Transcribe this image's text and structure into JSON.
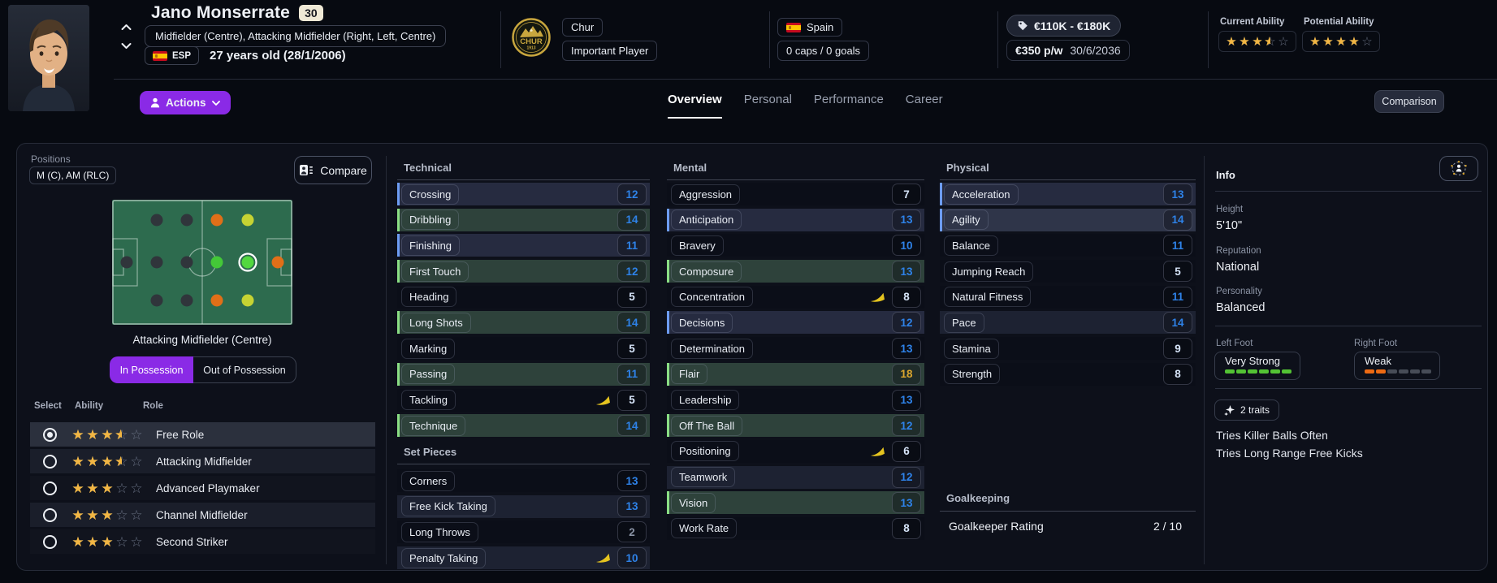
{
  "header": {
    "name": "Jano Monserrate",
    "age_badge": "30",
    "positions_line": "Midfielder (Centre), Attacking Midfielder (Right, Left, Centre)",
    "nationality_code": "ESP",
    "age_text": "27 years old (28/1/2006)",
    "club": {
      "name": "Chur",
      "crest_text": "CHUR",
      "crest_year": "1913",
      "status": "Important Player"
    },
    "nation": {
      "name": "Spain",
      "caps": "0 caps / 0 goals"
    },
    "value": {
      "range": "€110K - €180K",
      "wage": "€350 p/w",
      "contract_end": "30/6/2036"
    },
    "abilities": {
      "current_label": "Current Ability",
      "current_stars": 3.5,
      "potential_label": "Potential Ability",
      "potential_stars": 4
    },
    "actions_label": "Actions",
    "tabs": [
      "Overview",
      "Personal",
      "Performance",
      "Career"
    ],
    "active_tab": "Overview",
    "comparison_label": "Comparison"
  },
  "positions_panel": {
    "title": "Positions",
    "summary": "M (C), AM (RLC)",
    "compare_label": "Compare",
    "selected_position_label": "Attacking Midfielder (Centre)",
    "toggle": {
      "in_label": "In Possession",
      "out_label": "Out of Possession",
      "active": "In Possession"
    },
    "pitch": {
      "columns": [
        "GK",
        "D",
        "DM",
        "M",
        "AM",
        "ST"
      ],
      "rows": [
        "R",
        "C",
        "L"
      ],
      "dots": [
        {
          "col": "GK",
          "row": "C",
          "level": "dark"
        },
        {
          "col": "D",
          "row": "R",
          "level": "dark"
        },
        {
          "col": "D",
          "row": "C",
          "level": "dark"
        },
        {
          "col": "D",
          "row": "L",
          "level": "dark"
        },
        {
          "col": "DM",
          "row": "R",
          "level": "dark"
        },
        {
          "col": "DM",
          "row": "C",
          "level": "dark"
        },
        {
          "col": "DM",
          "row": "L",
          "level": "dark"
        },
        {
          "col": "M",
          "row": "R",
          "level": "orange"
        },
        {
          "col": "M",
          "row": "C",
          "level": "green"
        },
        {
          "col": "M",
          "row": "L",
          "level": "orange"
        },
        {
          "col": "AM",
          "row": "R",
          "level": "yellow"
        },
        {
          "col": "AM",
          "row": "C",
          "level": "natural"
        },
        {
          "col": "AM",
          "row": "L",
          "level": "yellow"
        },
        {
          "col": "ST",
          "row": "C",
          "level": "orange"
        }
      ]
    },
    "role_table": {
      "headers": [
        "Select",
        "Ability",
        "Role"
      ],
      "rows": [
        {
          "role": "Free Role",
          "stars": 3.5,
          "selected": true
        },
        {
          "role": "Attacking Midfielder",
          "stars": 3.5,
          "selected": false
        },
        {
          "role": "Advanced Playmaker",
          "stars": 3,
          "selected": false
        },
        {
          "role": "Channel Midfielder",
          "stars": 3,
          "selected": false
        },
        {
          "role": "Second Striker",
          "stars": 3,
          "selected": false
        }
      ]
    }
  },
  "attributes": {
    "technical": {
      "title": "Technical",
      "rows": [
        {
          "name": "Crossing",
          "value": 12,
          "highlight": "blue"
        },
        {
          "name": "Dribbling",
          "value": 14,
          "highlight": "green"
        },
        {
          "name": "Finishing",
          "value": 11,
          "highlight": "blue"
        },
        {
          "name": "First Touch",
          "value": 12,
          "highlight": "green"
        },
        {
          "name": "Heading",
          "value": 5,
          "highlight": null
        },
        {
          "name": "Long Shots",
          "value": 14,
          "highlight": "green"
        },
        {
          "name": "Marking",
          "value": 5,
          "highlight": null
        },
        {
          "name": "Passing",
          "value": 11,
          "highlight": "green"
        },
        {
          "name": "Tackling",
          "value": 5,
          "highlight": null,
          "arrow": true
        },
        {
          "name": "Technique",
          "value": 14,
          "highlight": "green"
        }
      ]
    },
    "set_pieces": {
      "title": "Set Pieces",
      "rows": [
        {
          "name": "Corners",
          "value": 13,
          "highlight": null
        },
        {
          "name": "Free Kick Taking",
          "value": 13,
          "highlight": "tint"
        },
        {
          "name": "Long Throws",
          "value": 2,
          "highlight": null
        },
        {
          "name": "Penalty Taking",
          "value": 10,
          "highlight": "tint",
          "arrow": true
        }
      ]
    },
    "mental": {
      "title": "Mental",
      "rows": [
        {
          "name": "Aggression",
          "value": 7,
          "highlight": null
        },
        {
          "name": "Anticipation",
          "value": 13,
          "highlight": "blue"
        },
        {
          "name": "Bravery",
          "value": 10,
          "highlight": null
        },
        {
          "name": "Composure",
          "value": 13,
          "highlight": "green"
        },
        {
          "name": "Concentration",
          "value": 8,
          "highlight": null,
          "arrow": true
        },
        {
          "name": "Decisions",
          "value": 12,
          "highlight": "blue"
        },
        {
          "name": "Determination",
          "value": 13,
          "highlight": null
        },
        {
          "name": "Flair",
          "value": 18,
          "highlight": "green"
        },
        {
          "name": "Leadership",
          "value": 13,
          "highlight": null
        },
        {
          "name": "Off The Ball",
          "value": 12,
          "highlight": "green"
        },
        {
          "name": "Positioning",
          "value": 6,
          "highlight": null,
          "arrow": true
        },
        {
          "name": "Teamwork",
          "value": 12,
          "highlight": "tint"
        },
        {
          "name": "Vision",
          "value": 13,
          "highlight": "green"
        },
        {
          "name": "Work Rate",
          "value": 8,
          "highlight": null
        }
      ]
    },
    "physical": {
      "title": "Physical",
      "rows": [
        {
          "name": "Acceleration",
          "value": 13,
          "highlight": "blue"
        },
        {
          "name": "Agility",
          "value": 14,
          "highlight": "blue2"
        },
        {
          "name": "Balance",
          "value": 11,
          "highlight": null
        },
        {
          "name": "Jumping Reach",
          "value": 5,
          "highlight": null
        },
        {
          "name": "Natural Fitness",
          "value": 11,
          "highlight": null
        },
        {
          "name": "Pace",
          "value": 14,
          "highlight": "tint"
        },
        {
          "name": "Stamina",
          "value": 9,
          "highlight": null
        },
        {
          "name": "Strength",
          "value": 8,
          "highlight": null
        }
      ]
    },
    "goalkeeping": {
      "title": "Goalkeeping",
      "row_label": "Goalkeeper Rating",
      "row_value": "2 / 10"
    }
  },
  "info": {
    "title": "Info",
    "height_label": "Height",
    "height_value": "5'10\"",
    "reputation_label": "Reputation",
    "reputation_value": "National",
    "personality_label": "Personality",
    "personality_value": "Balanced",
    "left_foot_label": "Left Foot",
    "left_foot_value": "Very Strong",
    "left_foot_level": 6,
    "right_foot_label": "Right Foot",
    "right_foot_value": "Weak",
    "right_foot_level": 2,
    "traits_label": "2 traits",
    "traits": [
      "Tries Killer Balls Often",
      "Tries Long Range Free Kicks"
    ]
  },
  "colors": {
    "accent_purple": "#8A2AE6",
    "star_gold": "#F2B643",
    "value_low": "#8A93A4",
    "value_mid_pale": "#D6E4F8",
    "value_blue": "#2E82E8",
    "value_gold": "#D9A52E",
    "row_blue": "#262B40",
    "row_green": "#2E423B",
    "pitch_green": "#2D6B4E",
    "foot_strong": "#53C234",
    "foot_weak": "#ED6A13",
    "decline_arrow": "#E5C41F",
    "dot_dark": "#30353B",
    "dot_orange": "#E06F18",
    "dot_yellow": "#C6D333",
    "dot_green": "#44C838",
    "dot_natural": "#52D83F"
  }
}
